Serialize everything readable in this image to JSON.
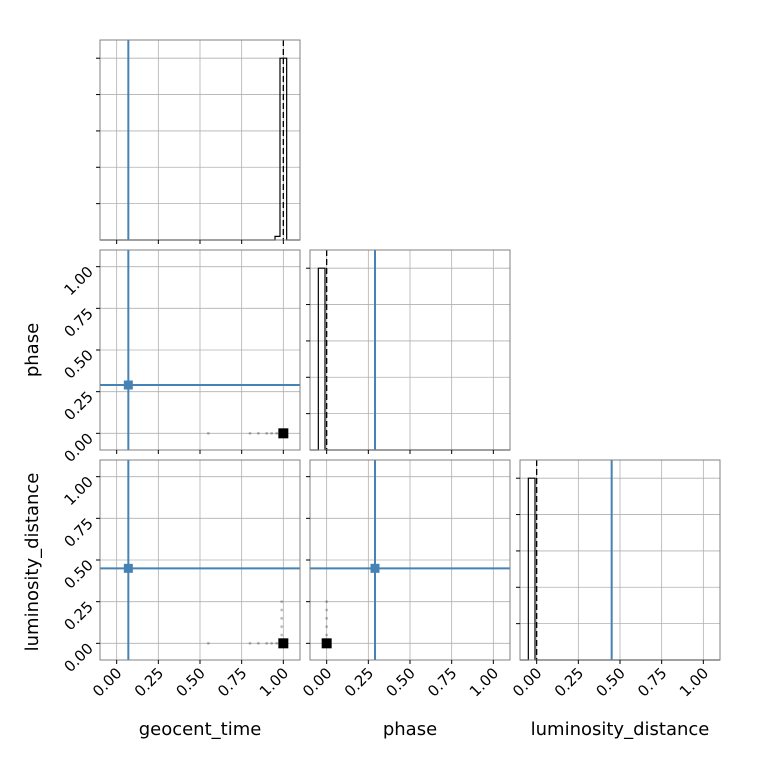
{
  "chart_data": {
    "type": "corner",
    "parameters": [
      "geocent_time",
      "phase",
      "luminosity_distance"
    ],
    "axis_range": [
      -0.1,
      1.1
    ],
    "tick_labels": [
      "0.00",
      "0.25",
      "0.50",
      "0.75",
      "1.00"
    ],
    "tick_values": [
      0.0,
      0.25,
      0.5,
      0.75,
      1.0
    ],
    "grid": true,
    "colors": {
      "truth": "#4682b4",
      "hist": "#000000",
      "scatter": "#000000",
      "grid": "#b0b0b0",
      "frame": "#808080"
    },
    "truths": {
      "geocent_time": 0.07,
      "phase": 0.29,
      "luminosity_distance": 0.45
    },
    "medians": {
      "geocent_time": 1.0,
      "phase": 0.0,
      "luminosity_distance": 0.0
    },
    "histograms": {
      "geocent_time": {
        "bins": [
          0.95,
          0.98,
          1.02,
          1.05
        ],
        "counts": [
          0.02,
          1.0,
          0.0
        ],
        "height_max": 1.1
      },
      "phase": {
        "bins": [
          -0.05,
          -0.01,
          0.02
        ],
        "counts": [
          1.0,
          0.0
        ],
        "height_max": 1.1
      },
      "luminosity_distance": {
        "bins": [
          -0.05,
          -0.01,
          0.02
        ],
        "counts": [
          1.0,
          0.0
        ],
        "height_max": 1.1
      }
    },
    "scatter": {
      "phase_vs_geocent_time": {
        "points": [
          [
            0.55,
            0.0
          ],
          [
            0.8,
            0.0
          ],
          [
            0.85,
            0.0
          ],
          [
            0.9,
            0.0
          ],
          [
            0.93,
            0.0
          ],
          [
            0.96,
            0.0
          ],
          [
            0.98,
            0.0
          ]
        ],
        "dense_mode": [
          1.0,
          0.0
        ]
      },
      "luminosity_distance_vs_geocent_time": {
        "points": [
          [
            0.55,
            0.0
          ],
          [
            0.8,
            0.0
          ],
          [
            0.85,
            0.0
          ],
          [
            0.9,
            0.0
          ],
          [
            0.93,
            0.0
          ],
          [
            0.96,
            0.0
          ],
          [
            0.98,
            0.02
          ],
          [
            0.99,
            0.05
          ],
          [
            0.99,
            0.1
          ],
          [
            0.99,
            0.15
          ],
          [
            0.99,
            0.2
          ],
          [
            0.99,
            0.25
          ]
        ],
        "dense_mode": [
          1.0,
          0.0
        ]
      },
      "luminosity_distance_vs_phase": {
        "points": [
          [
            0.0,
            0.05
          ],
          [
            0.0,
            0.1
          ],
          [
            0.0,
            0.15
          ],
          [
            0.0,
            0.2
          ],
          [
            0.0,
            0.25
          ]
        ],
        "dense_mode": [
          0.0,
          0.0
        ]
      }
    }
  }
}
